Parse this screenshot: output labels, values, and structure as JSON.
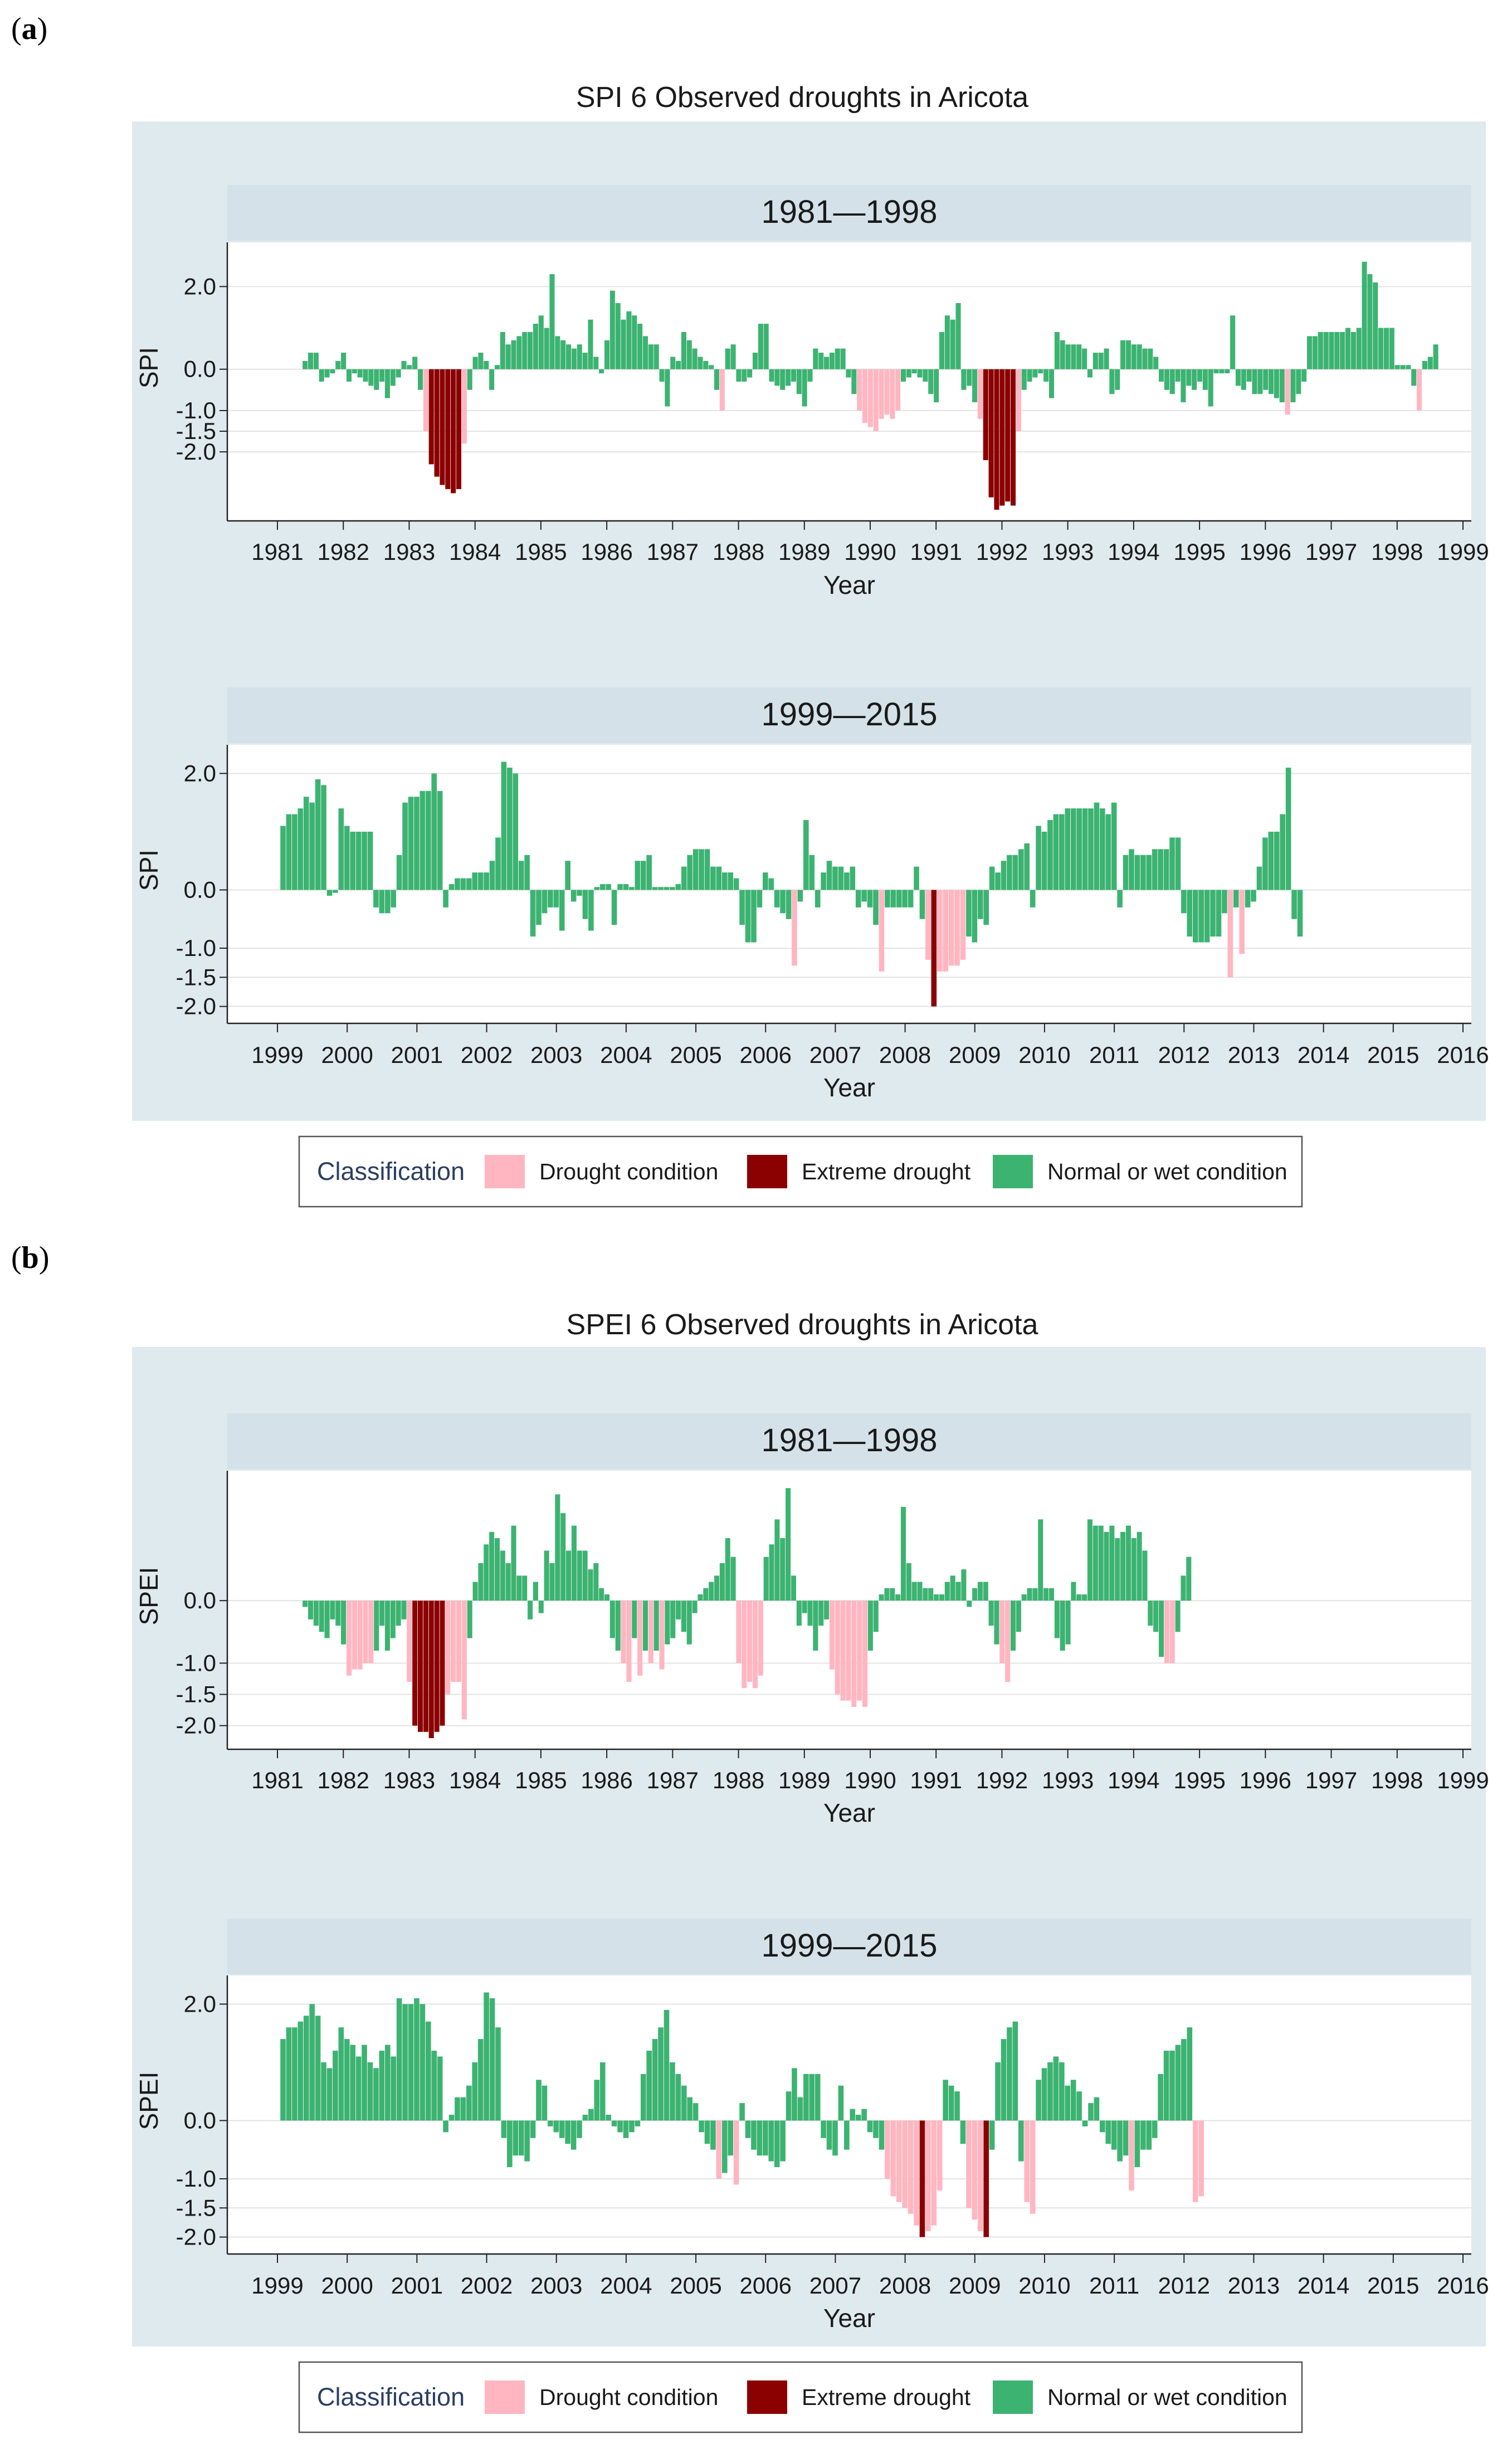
{
  "panels": [
    {
      "label_open": "(",
      "label_letter": "a",
      "label_close": ")"
    },
    {
      "label_open": "(",
      "label_letter": "b",
      "label_close": ")"
    }
  ],
  "legend": {
    "title": "Classification",
    "items": [
      {
        "key": "drought",
        "label": "Drought condition"
      },
      {
        "key": "extreme",
        "label": "Extreme drought"
      },
      {
        "key": "normal",
        "label": "Normal or wet condition"
      }
    ]
  },
  "colors": {
    "drought": "#ffb6c1",
    "extreme": "#8b0000",
    "normal": "#3cb371",
    "background": "#dfeaee",
    "strip": "#d4e1e8",
    "plot_bg": "#ffffff",
    "grid": "#e3e3e3",
    "axis": "#222222"
  },
  "chart_data": [
    {
      "type": "bar",
      "index": "SPI",
      "title": "SPI 6 Observed droughts in Aricota",
      "ylabel": "SPI",
      "xlabel": "Year",
      "subplots": [
        {
          "strip": "1981—1998",
          "x_start": 1981,
          "x_end": 1999,
          "ylim": [
            -3.4,
            2.8
          ],
          "yticks": [
            "2.0",
            "0.0",
            "-1.0",
            "-1.5",
            "-2.0"
          ],
          "xticks": [
            "1981",
            "1982",
            "1983",
            "1984",
            "1985",
            "1986",
            "1987",
            "1988",
            "1989",
            "1990",
            "1991",
            "1992",
            "1993",
            "1994",
            "1995",
            "1996",
            "1997",
            "1998",
            "1999"
          ],
          "first_month": 1981.42,
          "values": [
            0.2,
            0.4,
            0.4,
            -0.3,
            -0.2,
            -0.1,
            0.2,
            0.4,
            -0.3,
            -0.1,
            -0.2,
            -0.3,
            -0.4,
            -0.5,
            -0.3,
            -0.7,
            -0.4,
            -0.2,
            0.2,
            0.1,
            0.3,
            -0.5,
            -1.5,
            -2.3,
            -2.6,
            -2.8,
            -2.9,
            -3.0,
            -2.9,
            -1.8,
            -0.5,
            0.3,
            0.4,
            0.2,
            -0.5,
            0.1,
            0.9,
            0.6,
            0.7,
            0.8,
            0.9,
            0.9,
            1.1,
            1.3,
            1.0,
            2.3,
            0.8,
            0.7,
            0.6,
            0.5,
            0.6,
            0.4,
            1.2,
            0.3,
            -0.1,
            0.7,
            1.9,
            1.6,
            1.2,
            1.4,
            1.3,
            1.1,
            0.8,
            0.6,
            0.6,
            -0.3,
            -0.9,
            0.3,
            0.2,
            0.9,
            0.7,
            0.5,
            0.3,
            0.2,
            0.1,
            -0.5,
            -1.0,
            0.5,
            0.6,
            -0.3,
            -0.3,
            -0.2,
            0.4,
            1.1,
            1.1,
            -0.3,
            -0.4,
            -0.5,
            -0.4,
            -0.3,
            -0.6,
            -0.9,
            -0.3,
            0.5,
            0.4,
            0.3,
            0.4,
            0.5,
            0.5,
            -0.2,
            -0.6,
            -1.0,
            -1.3,
            -1.4,
            -1.5,
            -1.2,
            -1.1,
            -1.2,
            -1.0,
            -0.3,
            -0.2,
            -0.1,
            -0.2,
            -0.3,
            -0.6,
            -0.8,
            0.9,
            1.3,
            1.2,
            1.6,
            -0.5,
            -0.4,
            -0.8,
            -1.2,
            -2.2,
            -3.1,
            -3.4,
            -3.3,
            -3.2,
            -3.3,
            -1.5,
            -0.5,
            -0.3,
            -0.2,
            -0.1,
            -0.3,
            -0.7,
            0.9,
            0.7,
            0.6,
            0.6,
            0.6,
            0.5,
            -0.2,
            0.4,
            0.4,
            0.5,
            -0.6,
            -0.5,
            0.7,
            0.7,
            0.6,
            0.6,
            0.5,
            0.5,
            0.3,
            -0.3,
            -0.5,
            -0.6,
            -0.3,
            -0.8,
            -0.4,
            -0.5,
            -0.3,
            -0.5,
            -0.9,
            -0.1,
            -0.1,
            -0.1,
            1.3,
            -0.4,
            -0.5,
            -0.3,
            -0.6,
            -0.6,
            -0.5,
            -0.6,
            -0.7,
            -0.8,
            -1.1,
            -0.8,
            -0.6,
            -0.3,
            0.8,
            0.8,
            0.9,
            0.9,
            0.9,
            0.9,
            0.9,
            1.0,
            0.9,
            1.0,
            2.6,
            2.3,
            2.1,
            1.0,
            1.0,
            1.0,
            0.1,
            0.1,
            0.1,
            -0.4,
            -1.0,
            0.2,
            0.3,
            0.6
          ]
        },
        {
          "strip": "1999—2015",
          "x_start": 1999,
          "x_end": 2016,
          "ylim": [
            -2.1,
            2.3
          ],
          "yticks": [
            "2.0",
            "0.0",
            "-1.0",
            "-1.5",
            "-2.0"
          ],
          "xticks": [
            "1999",
            "2000",
            "2001",
            "2002",
            "2003",
            "2004",
            "2005",
            "2006",
            "2007",
            "2008",
            "2009",
            "2010",
            "2011",
            "2012",
            "2013",
            "2014",
            "2015",
            "2016"
          ],
          "first_month": 1999.08,
          "values": [
            1.1,
            1.3,
            1.3,
            1.4,
            1.6,
            1.5,
            1.9,
            1.8,
            -0.1,
            -0.05,
            1.4,
            1.1,
            1.0,
            1.0,
            1.0,
            1.0,
            -0.3,
            -0.4,
            -0.4,
            -0.3,
            0.6,
            1.5,
            1.6,
            1.6,
            1.7,
            1.7,
            2.0,
            1.7,
            -0.3,
            0.1,
            0.2,
            0.2,
            0.2,
            0.3,
            0.3,
            0.3,
            0.5,
            0.9,
            2.2,
            2.1,
            2.0,
            0.5,
            0.6,
            -0.8,
            -0.6,
            -0.4,
            -0.3,
            -0.3,
            -0.7,
            0.5,
            -0.2,
            -0.1,
            -0.5,
            -0.7,
            0.05,
            0.1,
            0.1,
            -0.6,
            0.1,
            0.1,
            0.05,
            0.5,
            0.5,
            0.6,
            0.05,
            0.05,
            0.05,
            0.05,
            0.1,
            0.4,
            0.6,
            0.7,
            0.7,
            0.7,
            0.4,
            0.4,
            0.3,
            0.3,
            0.2,
            -0.6,
            -0.9,
            -0.9,
            -0.3,
            0.3,
            0.2,
            -0.3,
            -0.4,
            -0.5,
            -1.3,
            -0.2,
            1.2,
            0.6,
            -0.3,
            0.3,
            0.5,
            0.4,
            0.4,
            0.3,
            0.4,
            -0.3,
            -0.2,
            -0.3,
            -0.6,
            -1.4,
            -0.3,
            -0.3,
            -0.3,
            -0.3,
            -0.3,
            0.4,
            -0.5,
            -1.2,
            -2.0,
            -1.4,
            -1.4,
            -1.3,
            -1.3,
            -1.2,
            -0.8,
            -0.9,
            -0.5,
            -0.6,
            0.4,
            0.3,
            0.5,
            0.6,
            0.6,
            0.7,
            0.8,
            -0.3,
            1.1,
            1.0,
            1.2,
            1.3,
            1.3,
            1.4,
            1.4,
            1.4,
            1.4,
            1.4,
            1.5,
            1.4,
            1.3,
            1.5,
            -0.3,
            0.6,
            0.7,
            0.6,
            0.6,
            0.6,
            0.7,
            0.7,
            0.7,
            0.9,
            0.9,
            -0.4,
            -0.8,
            -0.9,
            -0.9,
            -0.9,
            -0.8,
            -0.8,
            -0.4,
            -1.5,
            -0.3,
            -1.1,
            -0.3,
            -0.2,
            0.4,
            0.9,
            1.0,
            1.0,
            1.3,
            2.1,
            -0.5,
            -0.8
          ]
        }
      ]
    },
    {
      "type": "bar",
      "index": "SPEI",
      "title": "SPEI 6 Observed droughts in Aricota",
      "ylabel": "SPEI",
      "xlabel": "Year",
      "subplots": [
        {
          "strip": "1981—1998",
          "x_start": 1981,
          "x_end": 1999,
          "ylim": [
            -2.2,
            1.9
          ],
          "yticks": [
            "0.0",
            "-1.0",
            "-1.5",
            "-2.0"
          ],
          "xticks": [
            "1981",
            "1982",
            "1983",
            "1984",
            "1985",
            "1986",
            "1987",
            "1988",
            "1989",
            "1990",
            "1991",
            "1992",
            "1993",
            "1994",
            "1995",
            "1996",
            "1997",
            "1998",
            "1999"
          ],
          "first_month": 1981.42,
          "values": [
            -0.1,
            -0.3,
            -0.4,
            -0.5,
            -0.6,
            -0.3,
            -0.4,
            -0.7,
            -1.2,
            -1.1,
            -1.1,
            -1.0,
            -1.0,
            -0.8,
            -0.4,
            -0.8,
            -0.6,
            -0.4,
            -0.3,
            -1.3,
            -2.0,
            -2.1,
            -2.1,
            -2.2,
            -2.1,
            -2.0,
            -1.5,
            -1.3,
            -1.3,
            -1.9,
            -0.6,
            0.3,
            0.6,
            0.9,
            1.1,
            1.0,
            0.8,
            0.6,
            1.2,
            0.4,
            0.4,
            -0.3,
            0.3,
            -0.2,
            0.8,
            0.6,
            1.7,
            1.4,
            0.8,
            1.2,
            0.8,
            0.8,
            0.5,
            0.6,
            0.2,
            0.1,
            -0.6,
            -0.8,
            -1.0,
            -1.3,
            -0.6,
            -1.2,
            -0.8,
            -1.0,
            -0.8,
            -1.1,
            -0.7,
            -0.6,
            -0.3,
            -0.5,
            -0.7,
            -0.2,
            0.1,
            0.2,
            0.3,
            0.4,
            0.6,
            1.0,
            0.7,
            -1.0,
            -1.4,
            -1.3,
            -1.4,
            -1.2,
            0.7,
            0.9,
            1.3,
            1.0,
            1.8,
            0.4,
            -0.4,
            -0.2,
            -0.4,
            -0.8,
            -0.4,
            -0.3,
            -1.1,
            -1.5,
            -1.6,
            -1.6,
            -1.7,
            -1.6,
            -1.7,
            -0.8,
            -0.5,
            0.1,
            0.2,
            0.2,
            0.1,
            1.5,
            0.6,
            0.3,
            0.3,
            0.2,
            0.2,
            0.1,
            0.1,
            0.3,
            0.4,
            0.3,
            0.5,
            -0.1,
            0.2,
            0.3,
            0.3,
            -0.4,
            -0.7,
            -1.0,
            -1.3,
            -0.8,
            -0.5,
            0.1,
            0.2,
            0.2,
            1.3,
            0.2,
            0.2,
            -0.6,
            -0.8,
            -0.7,
            0.3,
            0.1,
            0.1,
            1.3,
            1.2,
            1.2,
            1.1,
            1.2,
            1.0,
            1.1,
            1.2,
            1.0,
            1.1,
            0.8,
            -0.4,
            -0.5,
            -0.9,
            -1.0,
            -1.0,
            -0.5,
            0.4,
            0.7
          ]
        },
        {
          "strip": "1999—2015",
          "x_start": 1999,
          "x_end": 2016,
          "ylim": [
            -2.1,
            2.3
          ],
          "yticks": [
            "2.0",
            "0.0",
            "-1.0",
            "-1.5",
            "-2.0"
          ],
          "xticks": [
            "1999",
            "2000",
            "2001",
            "2002",
            "2003",
            "2004",
            "2005",
            "2006",
            "2007",
            "2008",
            "2009",
            "2010",
            "2011",
            "2012",
            "2013",
            "2014",
            "2015",
            "2016"
          ],
          "first_month": 1999.08,
          "values": [
            1.4,
            1.6,
            1.6,
            1.7,
            1.8,
            2.0,
            1.8,
            1.0,
            0.9,
            1.2,
            1.6,
            1.4,
            1.3,
            1.1,
            1.3,
            1.0,
            0.9,
            1.2,
            1.3,
            1.1,
            2.1,
            2.0,
            2.0,
            2.1,
            2.0,
            1.7,
            1.2,
            1.1,
            -0.2,
            0.1,
            0.4,
            0.4,
            0.6,
            1.0,
            1.4,
            2.2,
            2.1,
            1.6,
            -0.3,
            -0.8,
            -0.6,
            -0.6,
            -0.7,
            -0.3,
            0.7,
            0.6,
            -0.1,
            -0.2,
            -0.3,
            -0.4,
            -0.5,
            -0.3,
            0.1,
            0.2,
            0.7,
            1.0,
            0.1,
            -0.1,
            -0.2,
            -0.3,
            -0.2,
            -0.1,
            0.8,
            1.2,
            1.4,
            1.6,
            1.9,
            1.0,
            0.8,
            0.6,
            0.4,
            0.3,
            -0.2,
            -0.4,
            -0.5,
            -1.0,
            -0.9,
            -0.6,
            -1.1,
            0.3,
            -0.3,
            -0.5,
            -0.6,
            -0.6,
            -0.7,
            -0.8,
            -0.7,
            0.5,
            0.9,
            0.4,
            0.8,
            0.8,
            0.8,
            -0.3,
            -0.5,
            -0.6,
            0.6,
            -0.5,
            0.2,
            0.1,
            0.2,
            -0.2,
            -0.3,
            -0.5,
            -1.0,
            -1.3,
            -1.4,
            -1.5,
            -1.6,
            -1.8,
            -2.0,
            -1.9,
            -1.8,
            -1.2,
            0.7,
            0.6,
            0.5,
            -0.4,
            -1.5,
            -1.7,
            -1.9,
            -2.0,
            -0.5,
            1.0,
            1.4,
            1.6,
            1.7,
            -0.7,
            -1.4,
            -1.6,
            0.7,
            0.9,
            1.0,
            1.1,
            1.0,
            0.6,
            0.7,
            0.5,
            -0.1,
            0.3,
            0.4,
            -0.2,
            -0.4,
            -0.5,
            -0.7,
            -0.6,
            -1.2,
            -0.8,
            -0.5,
            -0.5,
            -0.3,
            0.8,
            1.2,
            1.2,
            1.3,
            1.4,
            1.6,
            -1.4,
            -1.3
          ]
        }
      ]
    }
  ]
}
